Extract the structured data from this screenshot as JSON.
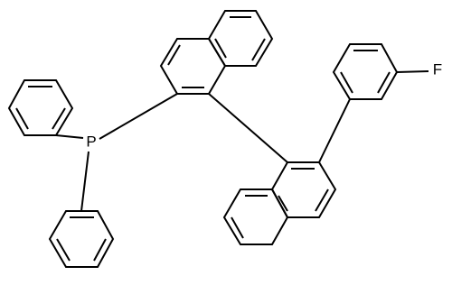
{
  "atoms": [
    {
      "label": "P"
    },
    {
      "label": "F"
    }
  ]
}
